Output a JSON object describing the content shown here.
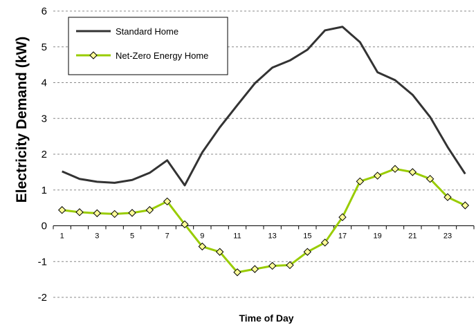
{
  "chart_data": {
    "type": "line",
    "xlabel": "Time of Day",
    "ylabel": "Electricity Demand (kW)",
    "ylim": [
      -2,
      6
    ],
    "yticks": [
      "6",
      "5",
      "4",
      "3",
      "2",
      "1",
      "0",
      "-1",
      "-2"
    ],
    "xtick_labels": [
      "1",
      "3",
      "5",
      "7",
      "9",
      "11",
      "13",
      "15",
      "17",
      "19",
      "21",
      "23"
    ],
    "x": [
      1,
      2,
      3,
      4,
      5,
      6,
      7,
      8,
      9,
      10,
      11,
      12,
      13,
      14,
      15,
      16,
      17,
      18,
      19,
      20,
      21,
      22,
      23,
      24
    ],
    "grid": "horizontal dashed",
    "legend_position": "top-left",
    "series": [
      {
        "name": "Standard Home",
        "color": "#333333",
        "marker": "none",
        "values": [
          1.52,
          1.31,
          1.23,
          1.2,
          1.28,
          1.48,
          1.83,
          1.13,
          2.05,
          2.75,
          3.37,
          3.98,
          4.42,
          4.62,
          4.92,
          5.46,
          5.56,
          5.13,
          4.29,
          4.07,
          3.66,
          3.04,
          2.2,
          1.45
        ]
      },
      {
        "name": "Net-Zero Energy Home",
        "color": "#99cc00",
        "marker": "diamond",
        "values": [
          0.44,
          0.38,
          0.35,
          0.33,
          0.36,
          0.44,
          0.68,
          0.04,
          -0.58,
          -0.73,
          -1.3,
          -1.21,
          -1.12,
          -1.1,
          -0.73,
          -0.47,
          0.24,
          1.24,
          1.4,
          1.59,
          1.5,
          1.31,
          0.8,
          0.57
        ]
      }
    ]
  }
}
